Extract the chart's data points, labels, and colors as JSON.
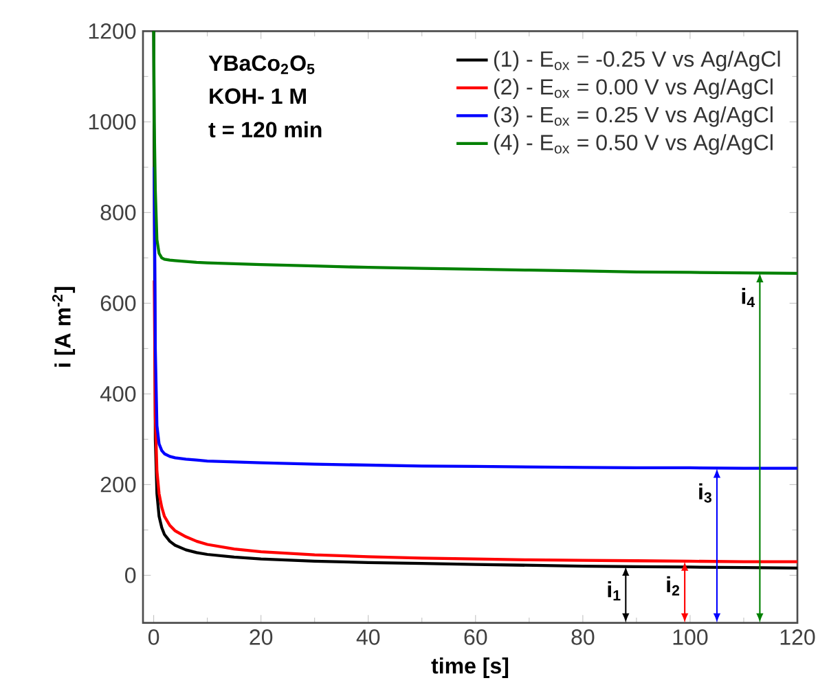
{
  "chart_data": {
    "type": "line",
    "xlabel": "time [s]",
    "ylabel": "i [A m$^{-2}$]",
    "x": [
      0,
      0.1,
      0.3,
      0.6,
      1,
      1.5,
      2,
      3,
      4,
      6,
      8,
      10,
      15,
      20,
      30,
      40,
      50,
      60,
      70,
      80,
      90,
      100,
      110,
      120
    ],
    "series": [
      {
        "name": "(1) - E$_{ox}$ = -0.25 V vs Ag/AgCl",
        "color": "#000000",
        "values": [
          1200,
          null,
          300,
          180,
          130,
          105,
          90,
          75,
          66,
          56,
          50,
          46,
          40,
          36,
          31,
          28,
          26,
          24,
          22,
          20,
          19,
          18,
          17,
          16
        ]
      },
      {
        "name": "(2) - E$_{ox}$ = 0.00 V vs Ag/AgCl",
        "color": "#ff0000",
        "values": [
          null,
          650,
          350,
          230,
          180,
          150,
          130,
          110,
          98,
          85,
          75,
          68,
          58,
          52,
          45,
          41,
          38,
          36,
          34,
          33,
          32,
          31,
          30,
          30
        ]
      },
      {
        "name": "(3) - E$_{ox}$ = 0.25 V vs Ag/AgCl",
        "color": "#0000ff",
        "values": [
          null,
          900,
          500,
          330,
          290,
          275,
          268,
          262,
          259,
          256,
          254,
          252,
          250,
          248,
          245,
          243,
          241,
          240,
          239,
          238,
          237,
          237,
          236,
          236
        ]
      },
      {
        "name": "(4) - E$_{ox}$ = 0.50 V vs Ag/AgCl",
        "color": "#008000",
        "values": [
          1200,
          1000,
          850,
          740,
          710,
          700,
          697,
          695,
          694,
          692,
          690,
          689,
          687,
          685,
          682,
          679,
          677,
          675,
          673,
          671,
          669,
          668,
          667,
          666
        ]
      }
    ],
    "xlim": [
      -2,
      120
    ],
    "ylim": [
      -105,
      1200
    ],
    "xticks": [
      0,
      20,
      40,
      60,
      80,
      100,
      120
    ],
    "yticks": [
      0,
      200,
      400,
      600,
      800,
      1000,
      1200
    ],
    "legend": "top right",
    "marker": "none",
    "grid": false,
    "annotations": [
      "YBaCo$_{2}$O$_{5}$",
      "KOH- 1 M",
      "t = 120 min",
      {
        "text": "i$_{1}$",
        "x": 88,
        "y": 20
      },
      {
        "text": "i$_{2}$",
        "x": 99,
        "y": 31
      },
      {
        "text": "i$_{3}$",
        "x": 105,
        "y": 236
      },
      {
        "text": "i$_{4}$",
        "x": 113,
        "y": 667
      }
    ]
  }
}
